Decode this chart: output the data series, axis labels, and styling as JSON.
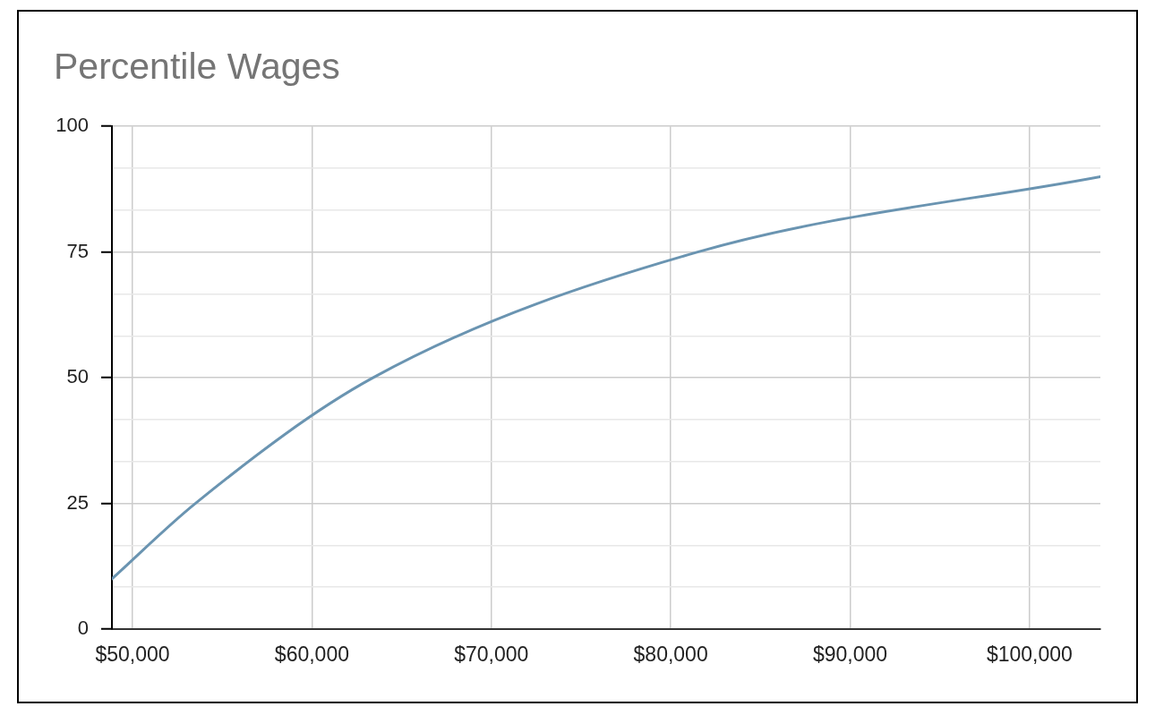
{
  "chart_data": {
    "type": "line",
    "title": "Percentile Wages",
    "x": [
      48850,
      53500,
      63400,
      81500,
      103950
    ],
    "values": [
      10,
      25,
      50,
      75,
      90
    ],
    "color": "#6a94b1",
    "xlim": [
      48850,
      103950
    ],
    "xticks": [
      {
        "value": 50000,
        "label": "$50,000"
      },
      {
        "value": 60000,
        "label": "$60,000"
      },
      {
        "value": 70000,
        "label": "$70,000"
      },
      {
        "value": 80000,
        "label": "$80,000"
      },
      {
        "value": 90000,
        "label": "$90,000"
      },
      {
        "value": 100000,
        "label": "$100,000"
      }
    ],
    "ylim": [
      0,
      100
    ],
    "yticks": [
      0,
      {
        "value": 8.33,
        "label": null
      },
      {
        "value": 16.67,
        "label": null
      },
      25,
      {
        "value": 33.33,
        "label": null
      },
      {
        "value": 41.67,
        "label": null
      },
      50,
      {
        "value": 58.33,
        "label": null
      },
      {
        "value": 66.67,
        "label": null
      },
      75,
      {
        "value": 83.33,
        "label": null
      },
      {
        "value": 91.67,
        "label": null
      },
      100
    ],
    "grid": true,
    "marker": "none",
    "line_style": "solid"
  }
}
